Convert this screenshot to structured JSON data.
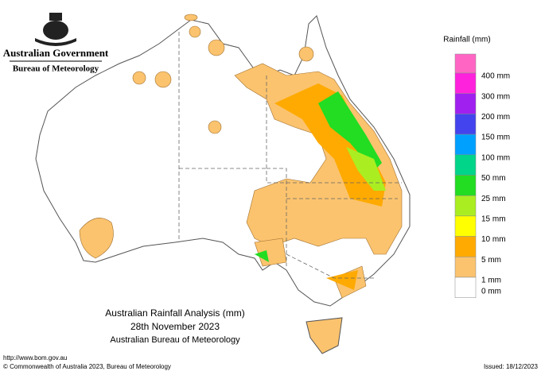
{
  "header": {
    "government": "Australian Government",
    "bureau": "Bureau of Meteorology"
  },
  "map": {
    "title": "Australian Rainfall Analysis (mm)",
    "date": "28th November 2023",
    "agency": "Australian Bureau of Meteorology"
  },
  "legend": {
    "title": "Rainfall (mm)",
    "entries": [
      {
        "label": "400 mm",
        "color": "#ff22dd"
      },
      {
        "label": "300 mm",
        "color": "#a020f0"
      },
      {
        "label": "200 mm",
        "color": "#4444ee"
      },
      {
        "label": "150 mm",
        "color": "#00a0ff"
      },
      {
        "label": "100 mm",
        "color": "#00d58a"
      },
      {
        "label": "50 mm",
        "color": "#22dd22"
      },
      {
        "label": "25 mm",
        "color": "#aaee22"
      },
      {
        "label": "15 mm",
        "color": "#ffff00"
      },
      {
        "label": "10 mm",
        "color": "#ffaa00"
      },
      {
        "label": "5 mm",
        "color": "#fbc36e"
      },
      {
        "label": "1 mm",
        "color": "#ffffff"
      }
    ],
    "last_label": "0 mm"
  },
  "footer": {
    "url": "http://www.bom.gov.au",
    "copyright": "© Commonwealth of Australia 2023, Bureau of Meteorology",
    "issued": "Issued: 18/12/2023"
  }
}
